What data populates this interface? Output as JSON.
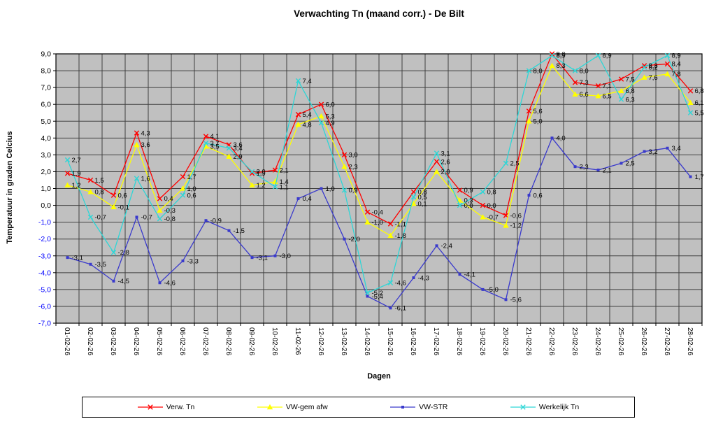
{
  "title": "Verwachting Tn (maand corr.) - De Bilt",
  "y_axis": {
    "title": "Temperatuur in graden Celcius",
    "min": -7.0,
    "max": 9.0,
    "step": 1.0,
    "tick_labels": [
      "9,0",
      "8,0",
      "7,0",
      "6,0",
      "5,0",
      "4,0",
      "3,0",
      "2,0",
      "1,0",
      "0,0",
      "-1,0",
      "-2,0",
      "-3,0",
      "-4,0",
      "-5,0",
      "-6,0",
      "-7,0"
    ],
    "positive_tick_color": "#000000",
    "negative_tick_color": "#0000FF"
  },
  "x_axis": {
    "title": "Dagen"
  },
  "chart_data": {
    "type": "line",
    "title": "Verwachting Tn (maand corr.) - De Bilt",
    "xlabel": "Dagen",
    "ylabel": "Temperatuur in graden Celcius",
    "ylim": [
      -7.0,
      9.0
    ],
    "y_step": 1.0,
    "grid": true,
    "plot_background": "#C0C0C0",
    "gridline_color": "#3f3f3f",
    "legend_position": "bottom",
    "decimal_separator": ",",
    "data_labels_shown": true,
    "categories": [
      "01-02-26",
      "02-02-26",
      "03-02-26",
      "04-02-26",
      "05-02-26",
      "06-02-26",
      "07-02-26",
      "08-02-26",
      "09-02-26",
      "10-02-26",
      "11-02-26",
      "12-02-26",
      "13-02-26",
      "14-02-26",
      "15-02-26",
      "16-02-26",
      "17-02-26",
      "18-02-26",
      "19-02-26",
      "20-02-26",
      "21-02-26",
      "22-02-26",
      "23-02-26",
      "24-02-26",
      "25-02-26",
      "26-02-26",
      "27-02-26",
      "28-02-26"
    ],
    "series": [
      {
        "name": "Verw. Tn",
        "color": "#FF0000",
        "marker": "x",
        "values": [
          1.9,
          1.5,
          0.6,
          4.3,
          0.4,
          1.7,
          4.1,
          3.6,
          1.9,
          2.1,
          5.4,
          6.0,
          3.0,
          -0.4,
          -1.1,
          0.8,
          2.6,
          0.9,
          0.0,
          -0.6,
          5.6,
          9.0,
          7.3,
          7.1,
          7.5,
          8.3,
          8.4,
          6.8
        ]
      },
      {
        "name": "VW-gem afw",
        "color": "#FFFF00",
        "marker": "triangle",
        "values": [
          1.2,
          0.8,
          -0.1,
          3.6,
          -0.3,
          1.0,
          3.5,
          2.9,
          1.2,
          1.4,
          4.8,
          5.3,
          2.3,
          -1.0,
          -1.8,
          0.1,
          2.0,
          0.3,
          -0.7,
          -1.2,
          5.0,
          8.3,
          6.6,
          6.5,
          6.8,
          7.6,
          7.8,
          6.1
        ]
      },
      {
        "name": "VW-STR",
        "color": "#3A3ACC",
        "marker": "square",
        "values": [
          -3.1,
          -3.5,
          -4.5,
          -0.7,
          -4.6,
          -3.3,
          -0.9,
          -1.5,
          -3.1,
          -3.0,
          0.4,
          1.0,
          -2.0,
          -5.4,
          -6.1,
          -4.3,
          -2.4,
          -4.1,
          -5.0,
          -5.6,
          0.6,
          4.0,
          2.3,
          2.1,
          2.5,
          3.2,
          3.4,
          1.7
        ]
      },
      {
        "name": "Werkelijk Tn",
        "color": "#2ED6D6",
        "marker": "x",
        "values": [
          2.7,
          -0.7,
          -2.8,
          1.6,
          -0.8,
          0.6,
          3.7,
          3.4,
          2.0,
          1.1,
          7.4,
          4.9,
          0.9,
          -5.2,
          -4.6,
          0.5,
          3.1,
          0.0,
          0.8,
          2.5,
          8.0,
          8.9,
          8.0,
          8.9,
          6.3,
          8.2,
          8.9,
          5.5
        ]
      }
    ]
  }
}
